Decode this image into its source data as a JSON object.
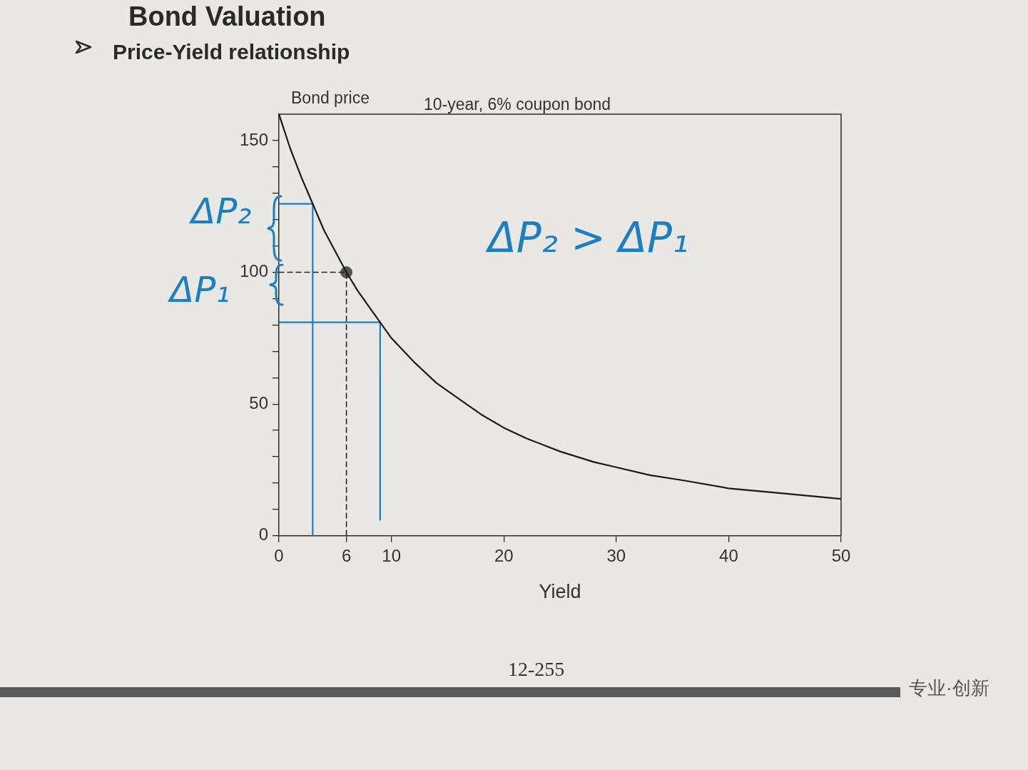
{
  "chart_data": {
    "type": "line",
    "title": "Bond Valuation",
    "subtitle": "Price-Yield relationship",
    "xlabel": "Yield",
    "ylabel": "Bond price",
    "annotations": [
      "10-year, 6% coupon bond",
      "ΔP₂",
      "ΔP₁",
      "ΔP₂ > ΔP₁",
      "12-255",
      "专业·创新"
    ],
    "xlim": [
      0,
      50
    ],
    "ylim": [
      0,
      160
    ],
    "xticks": [
      0,
      6,
      10,
      20,
      30,
      40,
      50
    ],
    "yticks": [
      0,
      {
        "value": 10,
        "label": null
      },
      {
        "value": 20,
        "label": null
      },
      {
        "value": 30,
        "label": null
      },
      {
        "value": 40,
        "label": null
      },
      50,
      {
        "value": 60,
        "label": null
      },
      {
        "value": 70,
        "label": null
      },
      {
        "value": 80,
        "label": null
      },
      {
        "value": 90,
        "label": null
      },
      100,
      {
        "value": 110,
        "label": null
      },
      {
        "value": 120,
        "label": null
      },
      {
        "value": 130,
        "label": null
      },
      {
        "value": 140,
        "label": null
      },
      150
    ],
    "marker": "none",
    "line_style": "solid",
    "series": [
      {
        "color": "#1a1a1a",
        "x": [
          0,
          1,
          2,
          3,
          4,
          5,
          6,
          7,
          8,
          9,
          10,
          12,
          14,
          16,
          18,
          20,
          22,
          25,
          28,
          30,
          33,
          36,
          40,
          45,
          50
        ],
        "values": [
          160,
          147,
          136,
          126,
          116,
          108,
          100,
          93,
          87,
          81,
          75,
          66,
          58,
          52,
          46,
          41,
          37,
          32,
          28,
          26,
          23,
          21,
          18,
          16,
          14
        ]
      },
      {
        "color": "#222222",
        "x": [
          0,
          6,
          6
        ],
        "values": [
          100,
          100,
          0
        ],
        "line_style": "dashed"
      },
      {
        "type": "scatter",
        "color": "#555555",
        "x": [
          6
        ],
        "values": [
          100
        ],
        "marker": "circle"
      },
      {
        "color": "#1b7fc4",
        "x": [
          0,
          3,
          3
        ],
        "values": [
          126,
          126,
          0
        ]
      },
      {
        "color": "#1b7fc4",
        "x": [
          0,
          9,
          9
        ],
        "values": [
          81,
          81,
          6
        ]
      }
    ]
  }
}
